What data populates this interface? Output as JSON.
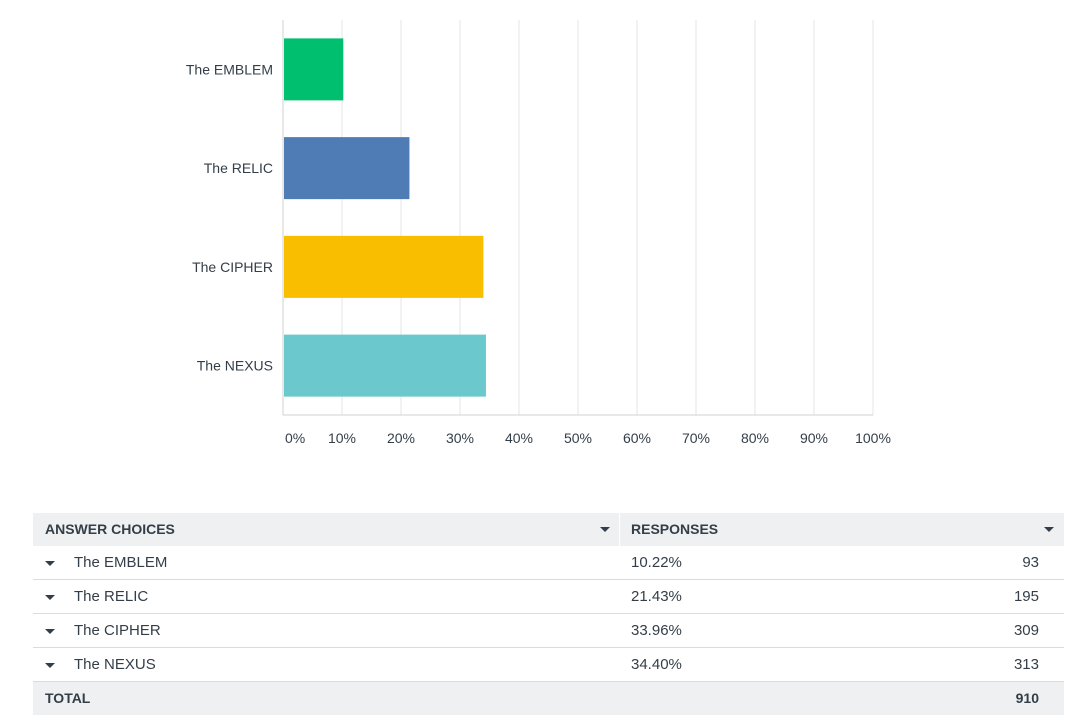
{
  "chart_data": {
    "type": "bar",
    "orientation": "horizontal",
    "categories": [
      "The EMBLEM",
      "The RELIC",
      "The CIPHER",
      "The NEXUS"
    ],
    "values": [
      10.22,
      21.43,
      33.96,
      34.4
    ],
    "colors": [
      "#00bf6f",
      "#507cb6",
      "#f9be00",
      "#6bc8cd"
    ],
    "xlim": [
      0,
      100
    ],
    "xticks": [
      "0%",
      "10%",
      "20%",
      "30%",
      "40%",
      "50%",
      "60%",
      "70%",
      "80%",
      "90%",
      "100%"
    ],
    "grid": true
  },
  "table": {
    "header": {
      "choices": "ANSWER CHOICES",
      "responses": "RESPONSES"
    },
    "rows": [
      {
        "choice": "The EMBLEM",
        "percent": "10.22%",
        "count": "93"
      },
      {
        "choice": "The RELIC",
        "percent": "21.43%",
        "count": "195"
      },
      {
        "choice": "The CIPHER",
        "percent": "33.96%",
        "count": "309"
      },
      {
        "choice": "The NEXUS",
        "percent": "34.40%",
        "count": "313"
      }
    ],
    "total": {
      "label": "TOTAL",
      "count": "910"
    }
  }
}
